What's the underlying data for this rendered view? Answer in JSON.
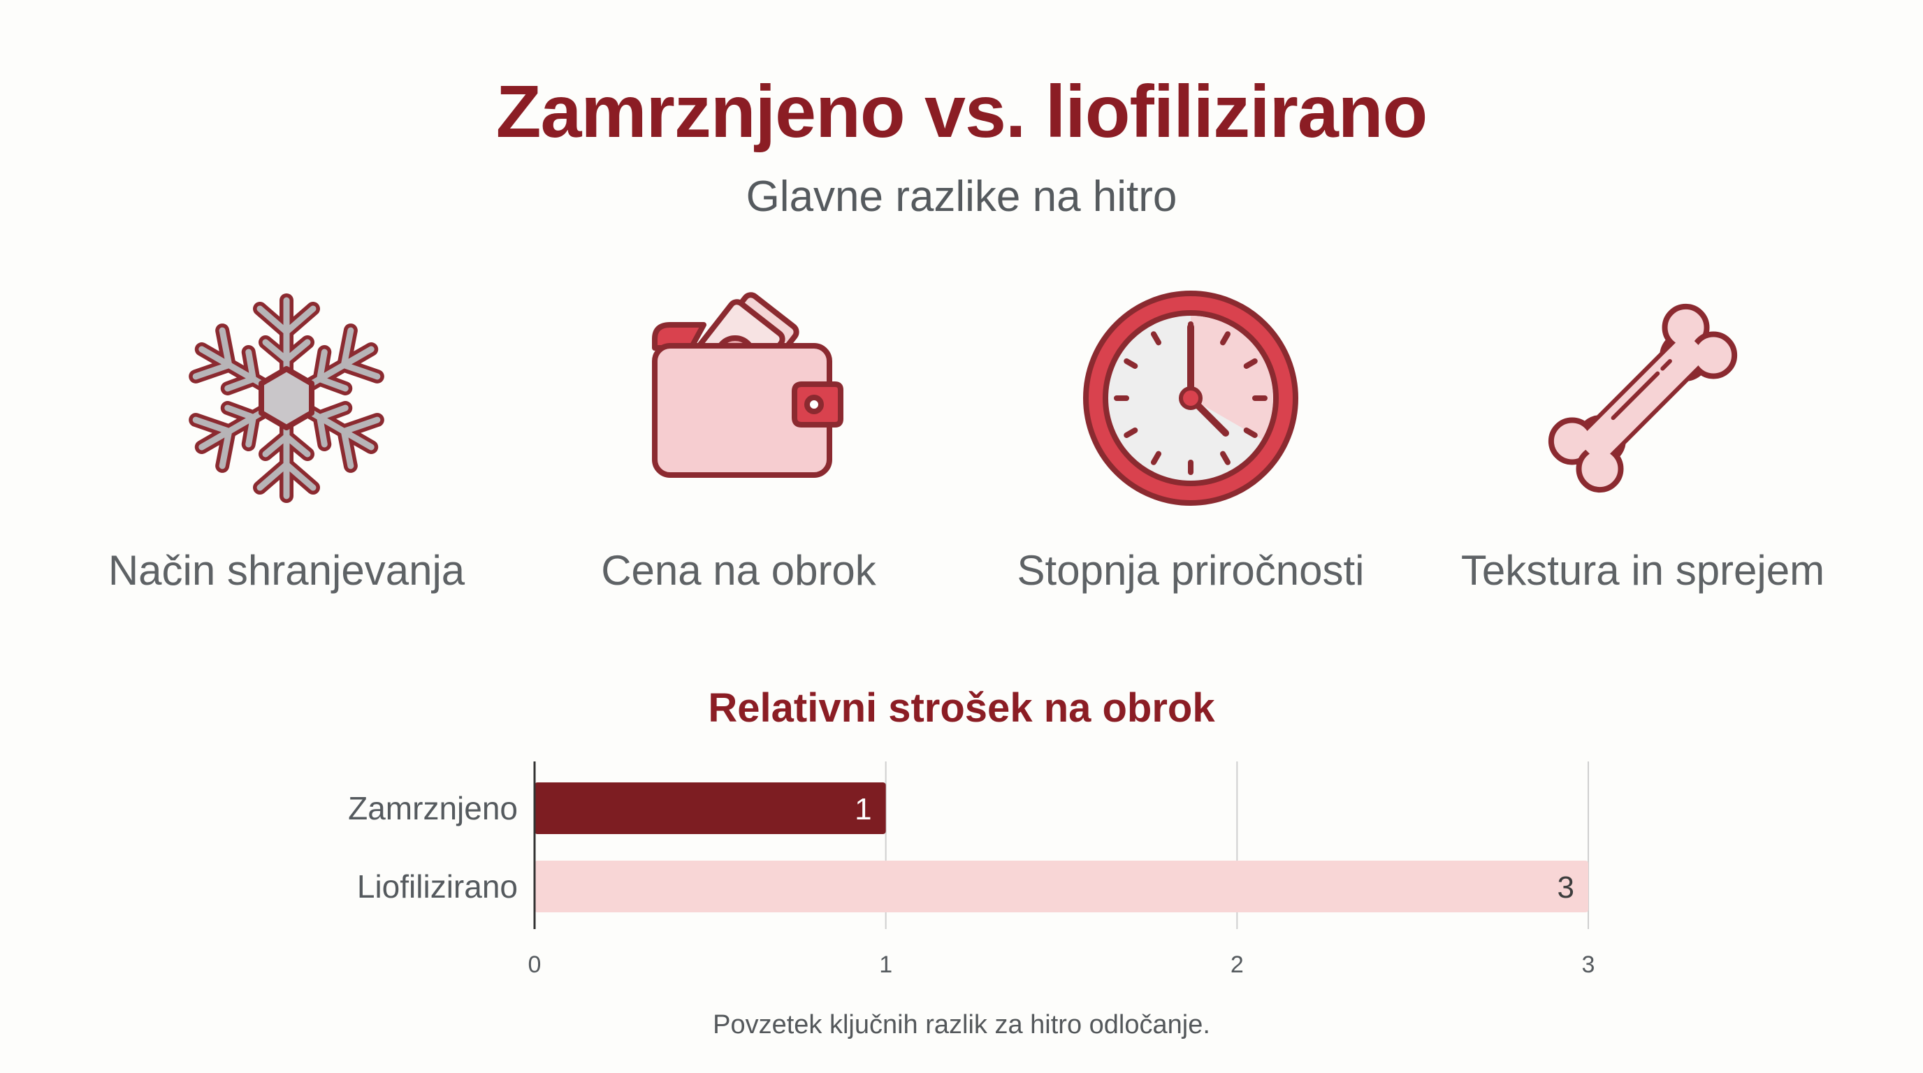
{
  "header": {
    "title": "Zamrznjeno vs. liofilizirano",
    "subtitle": "Glavne razlike na hitro"
  },
  "features": [
    {
      "label": "Način shranjevanja",
      "icon": "snowflake-icon"
    },
    {
      "label": "Cena na obrok",
      "icon": "wallet-icon"
    },
    {
      "label": "Stopnja priročnosti",
      "icon": "clock-icon"
    },
    {
      "label": "Tekstura in sprejem",
      "icon": "bone-icon"
    }
  ],
  "colors": {
    "accent_dark": "#8b1d24",
    "bar_dark": "#7d1d22",
    "bar_light": "#f8d6d6",
    "icon_pink": "#f6d3d5",
    "icon_red": "#d9424e"
  },
  "chart_data": {
    "type": "bar",
    "orientation": "horizontal",
    "title": "Relativni strošek na obrok",
    "categories": [
      "Zamrznjeno",
      "Liofilizirano"
    ],
    "values": [
      1,
      3
    ],
    "data_labels": [
      "1",
      "3"
    ],
    "bar_colors": [
      "#7d1d22",
      "#f8d6d6"
    ],
    "xlim": [
      0,
      3
    ],
    "xticks": [
      "0",
      "1",
      "2",
      "3"
    ],
    "grid": true,
    "legend": "none"
  },
  "footnote": "Povzetek ključnih razlik za hitro odločanje."
}
